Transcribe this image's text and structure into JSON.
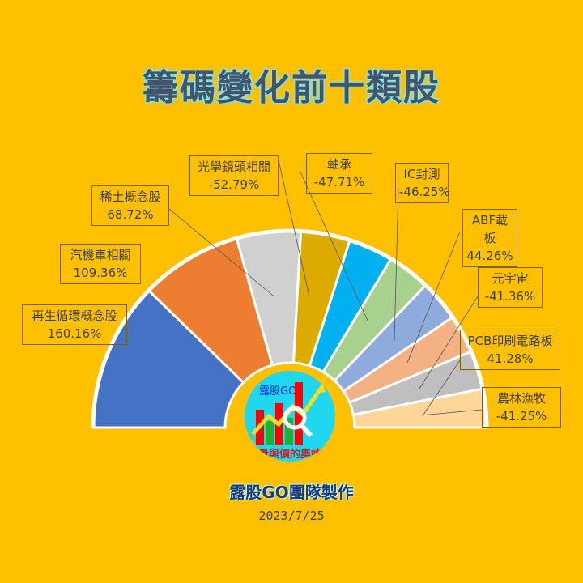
{
  "title": "籌碼變化前十類股",
  "footer": {
    "team": "露股GO團隊製作",
    "date": "2023/7/25"
  },
  "logo": {
    "brand": "露股GO",
    "slogan": "量與價的奧妙",
    "icon": "chart-magnifier-icon"
  },
  "chart_data": {
    "type": "pie",
    "subtype": "half-donut",
    "title": "籌碼變化前十類股",
    "categories": [
      "再生循環概念股",
      "汽機車相關",
      "稀土概念股",
      "光學鏡頭相關",
      "軸承",
      "IC封測",
      "ABF載板",
      "元宇宙",
      "PCB印刷電路板",
      "農林漁牧"
    ],
    "values": [
      160.16,
      109.36,
      68.72,
      -52.79,
      -47.71,
      -46.25,
      44.26,
      -41.36,
      41.28,
      -41.25
    ],
    "value_labels": [
      "160.16%",
      "109.36%",
      "68.72%",
      "-52.79%",
      "-47.71%",
      "-46.25%",
      "44.26%",
      "-41.36%",
      "41.28%",
      "-41.25%"
    ],
    "colors": [
      "#4472C4",
      "#ED7D31",
      "#D0D0D0",
      "#DDAA00",
      "#00B0F0",
      "#A9D18E",
      "#8FAADC",
      "#F4B183",
      "#BFBFBF",
      "#FFD699"
    ],
    "slice_size": "absolute value",
    "legend": "none (data callouts)"
  }
}
